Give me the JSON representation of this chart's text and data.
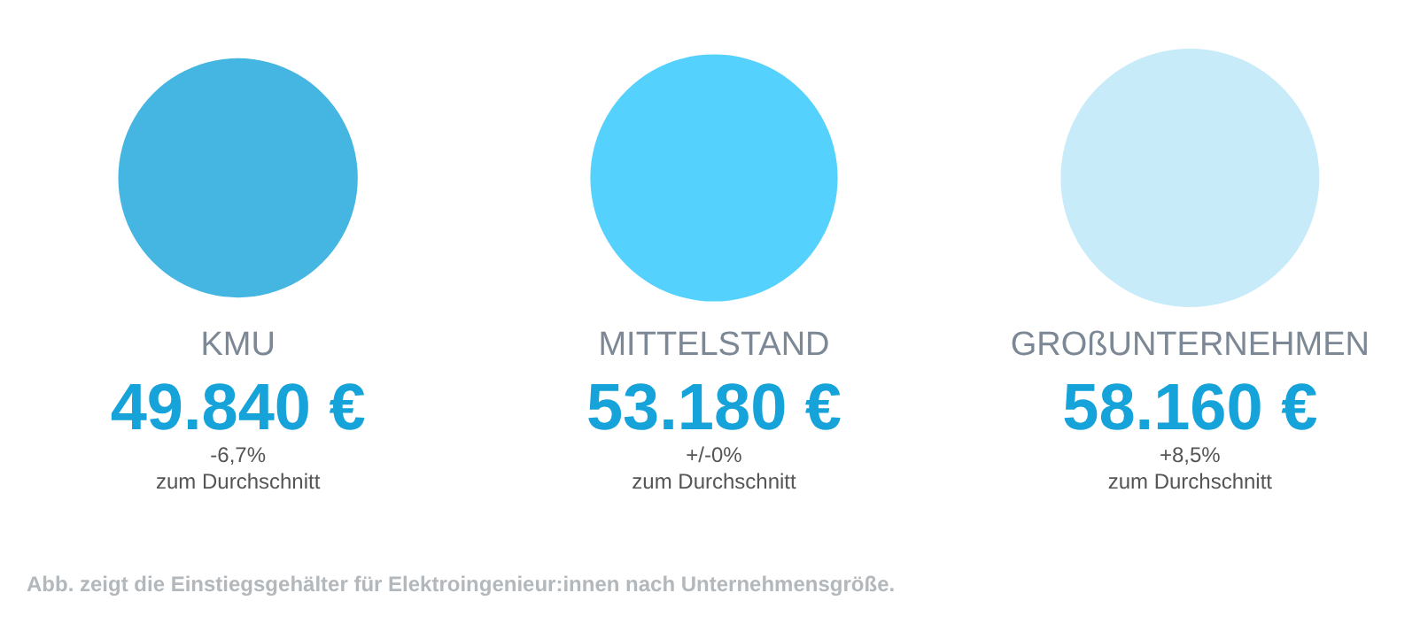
{
  "chart_data": {
    "type": "other",
    "categories": [
      "KMU",
      "MITTELSTAND",
      "GROßUNTERNEHMEN"
    ],
    "values": [
      49840,
      53180,
      58160
    ],
    "value_labels": [
      "49.840 €",
      "53.180 €",
      "58.160 €"
    ],
    "colors": [
      "#16a3da",
      "#2ac5fc",
      "#b9e6f7"
    ],
    "annotations": [
      {
        "text": "-6,7%",
        "x": "KMU"
      },
      {
        "text": "zum Durchschnitt",
        "x": "KMU"
      },
      {
        "text": "+/-0%",
        "x": "MITTELSTAND"
      },
      {
        "text": "zum Durchschnitt",
        "x": "MITTELSTAND"
      },
      {
        "text": "+8,5%",
        "x": "GROßUNTERNEHMEN"
      },
      {
        "text": "zum Durchschnitt",
        "x": "GROßUNTERNEHMEN"
      },
      "Abb. zeigt die Einstiegsgehälter für Elektroingenieur:innen nach Unternehmensgröße."
    ]
  }
}
